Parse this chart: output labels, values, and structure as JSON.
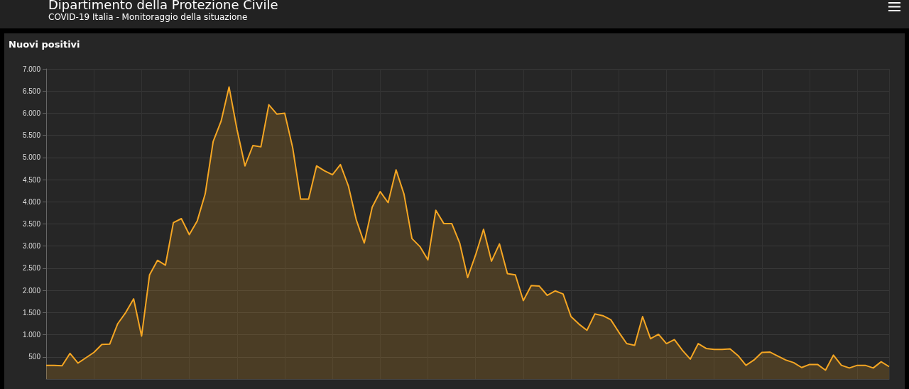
{
  "chart_data": {
    "type": "area",
    "title": "Nuovi positivi",
    "annotations": [
      "Dipartimento della Protezione Civile",
      "COVID-19 Italia - Monitoraggio della situazione"
    ],
    "categories": [
      null,
      null,
      null,
      null,
      null,
      null,
      null,
      null,
      null,
      null,
      null,
      null,
      null,
      null,
      null,
      null,
      null,
      null,
      null,
      null,
      null,
      null,
      null,
      null,
      null,
      null,
      null,
      null,
      null,
      null,
      null,
      null,
      null,
      null,
      null,
      null,
      null,
      null,
      null,
      null,
      null,
      null,
      null,
      null,
      null,
      null,
      null,
      null,
      null,
      null,
      null,
      null,
      null,
      null,
      null,
      null,
      null,
      null,
      null,
      null,
      null,
      null,
      null,
      null,
      null,
      null,
      null,
      null,
      null,
      null,
      null,
      null,
      null,
      null,
      null,
      null,
      null,
      null,
      null,
      null,
      null,
      null,
      null,
      null,
      null,
      null,
      null,
      null,
      null,
      null,
      null,
      null,
      null,
      null,
      null,
      null,
      null,
      null,
      null,
      null,
      null,
      null,
      null,
      null,
      null,
      null,
      null
    ],
    "series": [
      {
        "color": "#f5a623",
        "values": [
          310,
          310,
          300,
          580,
          360,
          480,
          600,
          780,
          790,
          1250,
          1500,
          1810,
          970,
          2350,
          2680,
          2570,
          3530,
          3620,
          3260,
          3570,
          4180,
          5360,
          5820,
          6590,
          5630,
          4810,
          5270,
          5240,
          6190,
          5980,
          6000,
          5220,
          4060,
          4060,
          4810,
          4700,
          4610,
          4840,
          4360,
          3590,
          3070,
          3880,
          4230,
          3980,
          4720,
          4170,
          3170,
          2990,
          2690,
          3810,
          3510,
          3510,
          3070,
          2290,
          2800,
          3380,
          2660,
          3050,
          2380,
          2350,
          1770,
          2110,
          2100,
          1890,
          1990,
          1920,
          1410,
          1240,
          1100,
          1470,
          1430,
          1340,
          1060,
          800,
          760,
          1410,
          910,
          1010,
          800,
          890,
          650,
          450,
          800,
          690,
          670,
          670,
          680,
          530,
          310,
          430,
          600,
          610,
          520,
          430,
          370,
          260,
          330,
          330,
          200,
          540,
          310,
          250,
          310,
          310,
          250,
          390,
          280
        ]
      }
    ],
    "ylim": [
      0,
      7000
    ],
    "yticks": [
      {
        "value": 500,
        "label": "500"
      },
      {
        "value": 1000,
        "label": "1.000"
      },
      {
        "value": 1500,
        "label": "1.500"
      },
      {
        "value": 2000,
        "label": "2.000"
      },
      {
        "value": 2500,
        "label": "2.500"
      },
      {
        "value": 3000,
        "label": "3.000"
      },
      {
        "value": 3500,
        "label": "3.500"
      },
      {
        "value": 4000,
        "label": "4.000"
      },
      {
        "value": 4500,
        "label": "4.500"
      },
      {
        "value": 5000,
        "label": "5.000"
      },
      {
        "value": 5500,
        "label": "5.500"
      },
      {
        "value": 6000,
        "label": "6.000"
      },
      {
        "value": 6500,
        "label": "6.500"
      },
      {
        "value": 7000,
        "label": "7.000"
      }
    ],
    "tick_labels": "y",
    "grid": true,
    "marker": "none"
  }
}
